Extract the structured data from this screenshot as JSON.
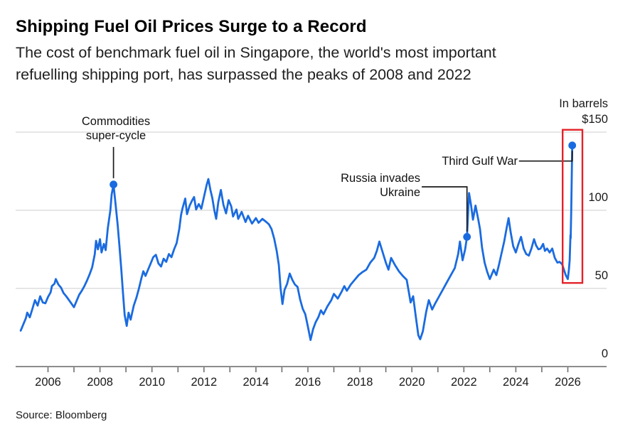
{
  "header": {
    "title": "Shipping Fuel Oil Prices Surge to a Record",
    "subtitle": "The cost of benchmark fuel oil in Singapore, the world's most important\nrefuelling shipping port, has surpassed the peaks of 2008 and 2022"
  },
  "footer": {
    "source": "Source: Bloomberg"
  },
  "chart_data": {
    "type": "line",
    "unit_label": "In barrels",
    "grid": true,
    "style": {
      "line_color": "#1a6be0",
      "grid_color": "#d8d8d8",
      "axis_color": "#8c8c8c",
      "tick_color": "#6f6f6f",
      "connector_color": "#1a1a1a",
      "highlight_color": "#e32228"
    },
    "x_axis": {
      "tick_start": 2006,
      "tick_end": 2026,
      "labels": [
        2006,
        2008,
        2010,
        2012,
        2014,
        2016,
        2018,
        2020,
        2022,
        2024,
        2026
      ],
      "range": [
        2004.8,
        2027.5
      ]
    },
    "y_axis": {
      "range": [
        0,
        150
      ],
      "gridlines": [
        150,
        100,
        50
      ],
      "ticks": [
        {
          "value": 150,
          "label": "$150"
        },
        {
          "value": 100,
          "label": "100"
        },
        {
          "value": 50,
          "label": "50"
        },
        {
          "value": 0,
          "label": "0"
        }
      ]
    },
    "annotations": [
      {
        "label": "Commodities\nsuper-cycle",
        "dot": {
          "year": 2008.52,
          "value": 116.5
        },
        "connector": [
          [
            2008.52,
            140.5
          ],
          [
            2008.52,
            120.5
          ]
        ]
      },
      {
        "label": "Russia invades\nUkraine",
        "dot": {
          "year": 2022.12,
          "value": 83
        },
        "connector": [
          [
            2020.38,
            115
          ],
          [
            2022.12,
            115
          ],
          [
            2022.12,
            86.5
          ]
        ]
      },
      {
        "label": "Third Gulf War",
        "dot": {
          "year": 2026.17,
          "value": 141.5
        },
        "connector": [
          [
            2024.12,
            131.5
          ],
          [
            2026.17,
            131.5
          ],
          [
            2026.17,
            138
          ]
        ]
      }
    ],
    "highlight_box": {
      "x0": 2025.8,
      "x1": 2026.56,
      "y0": 53.5,
      "y1": 151.5
    },
    "series": [
      {
        "name": "Singapore benchmark fuel oil price",
        "points": [
          [
            2004.95,
            23
          ],
          [
            2005.05,
            27
          ],
          [
            2005.15,
            31
          ],
          [
            2005.2,
            34.5
          ],
          [
            2005.3,
            31.5
          ],
          [
            2005.4,
            37
          ],
          [
            2005.5,
            42.5
          ],
          [
            2005.6,
            39
          ],
          [
            2005.7,
            45
          ],
          [
            2005.8,
            41
          ],
          [
            2005.9,
            40.5
          ],
          [
            2006.0,
            44.5
          ],
          [
            2006.1,
            47.5
          ],
          [
            2006.15,
            51.5
          ],
          [
            2006.25,
            53
          ],
          [
            2006.3,
            56
          ],
          [
            2006.4,
            52.5
          ],
          [
            2006.5,
            50.5
          ],
          [
            2006.6,
            47
          ],
          [
            2006.7,
            45
          ],
          [
            2006.85,
            41.5
          ],
          [
            2007.0,
            38
          ],
          [
            2007.1,
            42
          ],
          [
            2007.2,
            46
          ],
          [
            2007.3,
            48.5
          ],
          [
            2007.4,
            51.5
          ],
          [
            2007.5,
            55
          ],
          [
            2007.6,
            59
          ],
          [
            2007.7,
            63.5
          ],
          [
            2007.8,
            72
          ],
          [
            2007.85,
            80.5
          ],
          [
            2007.92,
            75
          ],
          [
            2008.0,
            81.5
          ],
          [
            2008.06,
            73
          ],
          [
            2008.15,
            78.5
          ],
          [
            2008.22,
            74.5
          ],
          [
            2008.3,
            88.5
          ],
          [
            2008.4,
            100
          ],
          [
            2008.45,
            110
          ],
          [
            2008.52,
            116.5
          ],
          [
            2008.6,
            104
          ],
          [
            2008.68,
            90.5
          ],
          [
            2008.75,
            77
          ],
          [
            2008.82,
            62
          ],
          [
            2008.88,
            48
          ],
          [
            2008.95,
            33
          ],
          [
            2009.03,
            26
          ],
          [
            2009.1,
            34.5
          ],
          [
            2009.18,
            30
          ],
          [
            2009.3,
            39
          ],
          [
            2009.4,
            44
          ],
          [
            2009.5,
            50
          ],
          [
            2009.6,
            57
          ],
          [
            2009.67,
            61
          ],
          [
            2009.75,
            58
          ],
          [
            2009.85,
            62
          ],
          [
            2009.95,
            66
          ],
          [
            2010.05,
            70
          ],
          [
            2010.15,
            71.5
          ],
          [
            2010.25,
            66
          ],
          [
            2010.35,
            64
          ],
          [
            2010.45,
            69
          ],
          [
            2010.55,
            67
          ],
          [
            2010.65,
            72
          ],
          [
            2010.75,
            70
          ],
          [
            2010.85,
            75
          ],
          [
            2010.95,
            79
          ],
          [
            2011.05,
            88
          ],
          [
            2011.12,
            97
          ],
          [
            2011.18,
            101.5
          ],
          [
            2011.28,
            107.5
          ],
          [
            2011.35,
            97.5
          ],
          [
            2011.45,
            103
          ],
          [
            2011.55,
            106.5
          ],
          [
            2011.62,
            108.5
          ],
          [
            2011.7,
            100.5
          ],
          [
            2011.8,
            104
          ],
          [
            2011.9,
            101
          ],
          [
            2012.0,
            108.5
          ],
          [
            2012.1,
            116
          ],
          [
            2012.17,
            120
          ],
          [
            2012.25,
            113
          ],
          [
            2012.32,
            108
          ],
          [
            2012.4,
            100
          ],
          [
            2012.47,
            94.5
          ],
          [
            2012.55,
            105
          ],
          [
            2012.65,
            113
          ],
          [
            2012.75,
            103.5
          ],
          [
            2012.85,
            98
          ],
          [
            2012.95,
            106.5
          ],
          [
            2013.05,
            102.5
          ],
          [
            2013.12,
            96
          ],
          [
            2013.25,
            100.5
          ],
          [
            2013.32,
            94.5
          ],
          [
            2013.45,
            99
          ],
          [
            2013.6,
            92.5
          ],
          [
            2013.7,
            96.5
          ],
          [
            2013.85,
            91.5
          ],
          [
            2014.0,
            95
          ],
          [
            2014.1,
            92
          ],
          [
            2014.25,
            94.5
          ],
          [
            2014.4,
            92.5
          ],
          [
            2014.5,
            91
          ],
          [
            2014.6,
            88
          ],
          [
            2014.7,
            82
          ],
          [
            2014.8,
            74
          ],
          [
            2014.88,
            65
          ],
          [
            2014.95,
            50
          ],
          [
            2015.02,
            40
          ],
          [
            2015.1,
            49
          ],
          [
            2015.2,
            53
          ],
          [
            2015.3,
            59.5
          ],
          [
            2015.4,
            55.5
          ],
          [
            2015.5,
            52.5
          ],
          [
            2015.6,
            51
          ],
          [
            2015.7,
            43
          ],
          [
            2015.8,
            37
          ],
          [
            2015.9,
            33.5
          ],
          [
            2016.0,
            25.5
          ],
          [
            2016.1,
            17
          ],
          [
            2016.2,
            24
          ],
          [
            2016.3,
            28.5
          ],
          [
            2016.4,
            31.5
          ],
          [
            2016.5,
            36
          ],
          [
            2016.6,
            33.5
          ],
          [
            2016.75,
            38.5
          ],
          [
            2016.9,
            42.5
          ],
          [
            2017.0,
            46.5
          ],
          [
            2017.15,
            43.5
          ],
          [
            2017.3,
            48
          ],
          [
            2017.4,
            51.5
          ],
          [
            2017.5,
            48.5
          ],
          [
            2017.65,
            52.5
          ],
          [
            2017.8,
            55.5
          ],
          [
            2017.95,
            58.5
          ],
          [
            2018.1,
            60.5
          ],
          [
            2018.25,
            62
          ],
          [
            2018.4,
            66.5
          ],
          [
            2018.55,
            69.5
          ],
          [
            2018.65,
            74
          ],
          [
            2018.75,
            80
          ],
          [
            2018.85,
            74.5
          ],
          [
            2019.0,
            66.5
          ],
          [
            2019.1,
            62
          ],
          [
            2019.2,
            69.5
          ],
          [
            2019.35,
            65
          ],
          [
            2019.5,
            61
          ],
          [
            2019.65,
            58
          ],
          [
            2019.8,
            55.5
          ],
          [
            2019.88,
            48
          ],
          [
            2019.95,
            41
          ],
          [
            2020.05,
            45
          ],
          [
            2020.15,
            32
          ],
          [
            2020.25,
            20
          ],
          [
            2020.32,
            17.5
          ],
          [
            2020.42,
            22.5
          ],
          [
            2020.55,
            35
          ],
          [
            2020.65,
            42.5
          ],
          [
            2020.78,
            36.5
          ],
          [
            2020.9,
            40.5
          ],
          [
            2021.05,
            45
          ],
          [
            2021.2,
            49.5
          ],
          [
            2021.35,
            54
          ],
          [
            2021.5,
            58.5
          ],
          [
            2021.65,
            63
          ],
          [
            2021.78,
            72
          ],
          [
            2021.85,
            80
          ],
          [
            2021.95,
            68
          ],
          [
            2022.05,
            75
          ],
          [
            2022.12,
            83
          ],
          [
            2022.2,
            111
          ],
          [
            2022.28,
            103
          ],
          [
            2022.35,
            94
          ],
          [
            2022.45,
            103
          ],
          [
            2022.55,
            94.5
          ],
          [
            2022.62,
            88
          ],
          [
            2022.7,
            76
          ],
          [
            2022.8,
            66.5
          ],
          [
            2022.9,
            60.5
          ],
          [
            2023.0,
            56
          ],
          [
            2023.15,
            62
          ],
          [
            2023.25,
            58.5
          ],
          [
            2023.35,
            65
          ],
          [
            2023.45,
            72.5
          ],
          [
            2023.55,
            80
          ],
          [
            2023.65,
            89
          ],
          [
            2023.72,
            95
          ],
          [
            2023.8,
            86
          ],
          [
            2023.9,
            77
          ],
          [
            2024.0,
            73
          ],
          [
            2024.1,
            78.5
          ],
          [
            2024.2,
            83
          ],
          [
            2024.3,
            75.5
          ],
          [
            2024.4,
            72
          ],
          [
            2024.5,
            71
          ],
          [
            2024.6,
            75.5
          ],
          [
            2024.7,
            81.5
          ],
          [
            2024.78,
            77.5
          ],
          [
            2024.87,
            75
          ],
          [
            2024.95,
            75.5
          ],
          [
            2025.05,
            78.5
          ],
          [
            2025.12,
            74
          ],
          [
            2025.2,
            75.5
          ],
          [
            2025.3,
            73
          ],
          [
            2025.4,
            75.5
          ],
          [
            2025.5,
            69.5
          ],
          [
            2025.6,
            66.5
          ],
          [
            2025.68,
            67
          ],
          [
            2025.78,
            65.5
          ],
          [
            2025.85,
            62
          ],
          [
            2025.92,
            58.5
          ],
          [
            2026.0,
            56
          ],
          [
            2026.04,
            62
          ],
          [
            2026.07,
            68
          ],
          [
            2026.1,
            84
          ],
          [
            2026.11,
            82
          ],
          [
            2026.13,
            100
          ],
          [
            2026.17,
            141.5
          ]
        ]
      }
    ]
  }
}
